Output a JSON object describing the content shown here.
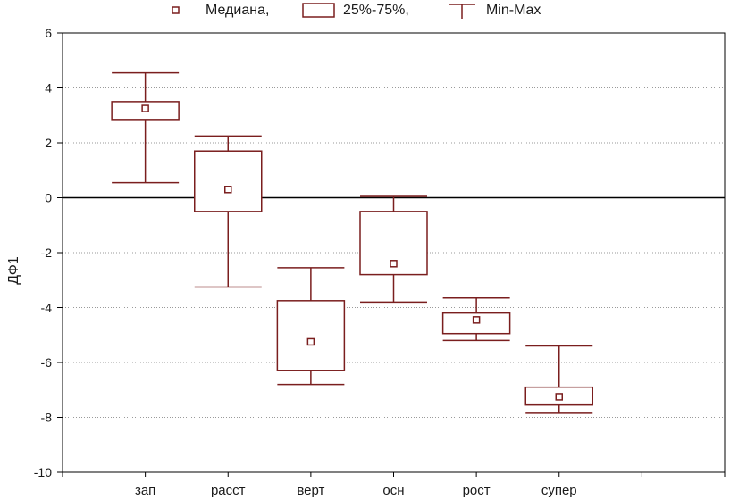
{
  "chart_data": {
    "type": "boxplot",
    "title": "",
    "xlabel": "",
    "ylabel": "ДФ1",
    "ylim": [
      -10,
      6
    ],
    "yticks": [
      6,
      4,
      2,
      0,
      -2,
      -4,
      -6,
      -8,
      -10
    ],
    "grid": true,
    "zero_line": true,
    "legend": {
      "position": "top",
      "entries": [
        {
          "kind": "median",
          "label": "Медиана,"
        },
        {
          "kind": "box",
          "label": "25%-75%,"
        },
        {
          "kind": "whisker",
          "label": "Min-Max"
        }
      ]
    },
    "categories": [
      "зап",
      "расст",
      "верт",
      "осн",
      "рост",
      "супер"
    ],
    "series": [
      {
        "category": "зап",
        "min": 0.55,
        "q1": 2.85,
        "median": 3.25,
        "q3": 3.5,
        "max": 4.55
      },
      {
        "category": "расст",
        "min": -3.25,
        "q1": -0.5,
        "median": 0.3,
        "q3": 1.7,
        "max": 2.25
      },
      {
        "category": "верт",
        "min": -6.8,
        "q1": -6.3,
        "median": -5.25,
        "q3": -3.75,
        "max": -2.55
      },
      {
        "category": "осн",
        "min": -3.8,
        "q1": -2.8,
        "median": -2.4,
        "q3": -0.5,
        "max": 0.05
      },
      {
        "category": "рост",
        "min": -5.2,
        "q1": -4.95,
        "median": -4.45,
        "q3": -4.2,
        "max": -3.65
      },
      {
        "category": "супер",
        "min": -7.85,
        "q1": -7.55,
        "median": -7.25,
        "q3": -6.9,
        "max": -5.4
      }
    ],
    "colors": {
      "box": "#7a1e1e",
      "axis": "#000000",
      "grid": "#9a9a9a",
      "text": "#1a1a1a"
    }
  }
}
